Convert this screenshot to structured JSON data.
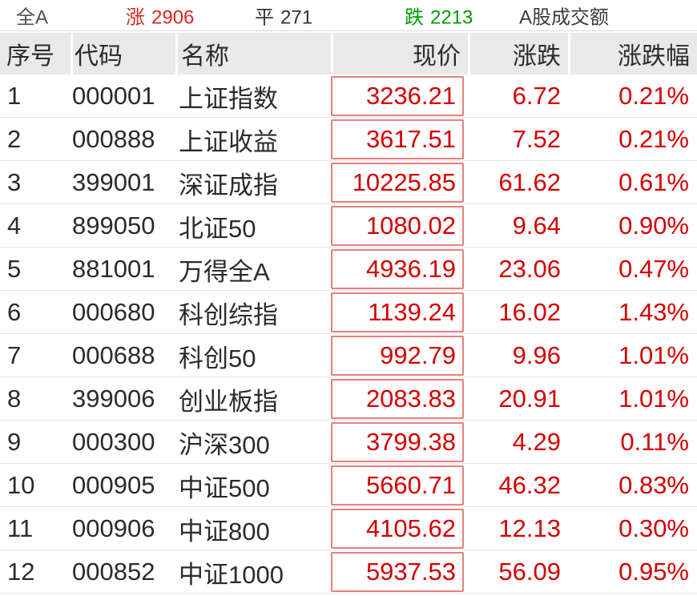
{
  "top_bar": {
    "market_label": "全A",
    "up": {
      "label": "涨",
      "count": "2906"
    },
    "flat": {
      "label": "平",
      "count": "271"
    },
    "down": {
      "label": "跌",
      "count": "2213"
    },
    "turnover_label": "A股成交额"
  },
  "table": {
    "headers": [
      "序号",
      "代码",
      "名称",
      "现价",
      "涨跌",
      "涨跌幅"
    ],
    "rows": [
      {
        "seq": "1",
        "code": "000001",
        "name": "上证指数",
        "price": "3236.21",
        "change": "6.72",
        "pct": "0.21%"
      },
      {
        "seq": "2",
        "code": "000888",
        "name": "上证收益",
        "price": "3617.51",
        "change": "7.52",
        "pct": "0.21%"
      },
      {
        "seq": "3",
        "code": "399001",
        "name": "深证成指",
        "price": "10225.85",
        "change": "61.62",
        "pct": "0.61%"
      },
      {
        "seq": "4",
        "code": "899050",
        "name": "北证50",
        "price": "1080.02",
        "change": "9.64",
        "pct": "0.90%"
      },
      {
        "seq": "5",
        "code": "881001",
        "name": "万得全A",
        "price": "4936.19",
        "change": "23.06",
        "pct": "0.47%"
      },
      {
        "seq": "6",
        "code": "000680",
        "name": "科创综指",
        "price": "1139.24",
        "change": "16.02",
        "pct": "1.43%"
      },
      {
        "seq": "7",
        "code": "000688",
        "name": "科创50",
        "price": "992.79",
        "change": "9.96",
        "pct": "1.01%"
      },
      {
        "seq": "8",
        "code": "399006",
        "name": "创业板指",
        "price": "2083.83",
        "change": "20.91",
        "pct": "1.01%"
      },
      {
        "seq": "9",
        "code": "000300",
        "name": "沪深300",
        "price": "3799.38",
        "change": "4.29",
        "pct": "0.11%"
      },
      {
        "seq": "10",
        "code": "000905",
        "name": "中证500",
        "price": "5660.71",
        "change": "46.32",
        "pct": "0.83%"
      },
      {
        "seq": "11",
        "code": "000906",
        "name": "中证800",
        "price": "4105.62",
        "change": "12.13",
        "pct": "0.30%"
      },
      {
        "seq": "12",
        "code": "000852",
        "name": "中证1000",
        "price": "5937.53",
        "change": "56.09",
        "pct": "0.95%"
      }
    ]
  },
  "colors": {
    "red": "#d30000",
    "topbar-red": "#d8281e",
    "green": "#009b00",
    "dark": "#2b2b2b",
    "header-bg": "#e9e9e9",
    "row-line": "#e4e4e4",
    "box-border": "#e5807f",
    "topbar-line": "#d9d9d9"
  }
}
